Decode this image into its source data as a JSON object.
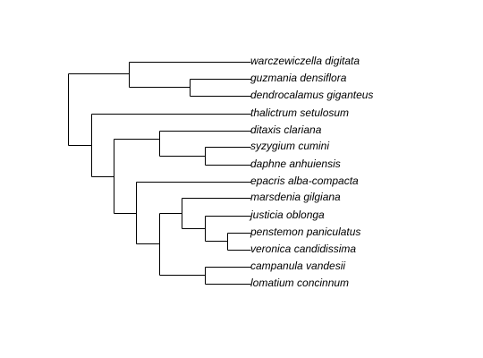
{
  "tree": {
    "leaves": [
      "warczewiczella digitata",
      "guzmania densiflora",
      "dendrocalamus giganteus",
      "thalictrum setulosum",
      "ditaxis clariana",
      "syzygium cumini",
      "daphne anhuiensis",
      "epacris alba-compacta",
      "marsdenia gilgiana",
      "justicia oblonga",
      "penstemon paniculatus",
      "veronica candidissima",
      "campanula vandesii",
      "lomatium concinnum"
    ],
    "newick": "((warczewiczella digitata,(guzmania densiflora,dendrocalamus giganteus)),(thalictrum setulosum,((ditaxis clariana,(syzygium cumini,daphne anhuiensis)),(epacris alba-compacta,((marsdenia gilgiana,(justicia oblonga,(penstemon paniculatus,veronica candidissima))),(campanula vandesii,lomatium concinnum))))));"
  }
}
